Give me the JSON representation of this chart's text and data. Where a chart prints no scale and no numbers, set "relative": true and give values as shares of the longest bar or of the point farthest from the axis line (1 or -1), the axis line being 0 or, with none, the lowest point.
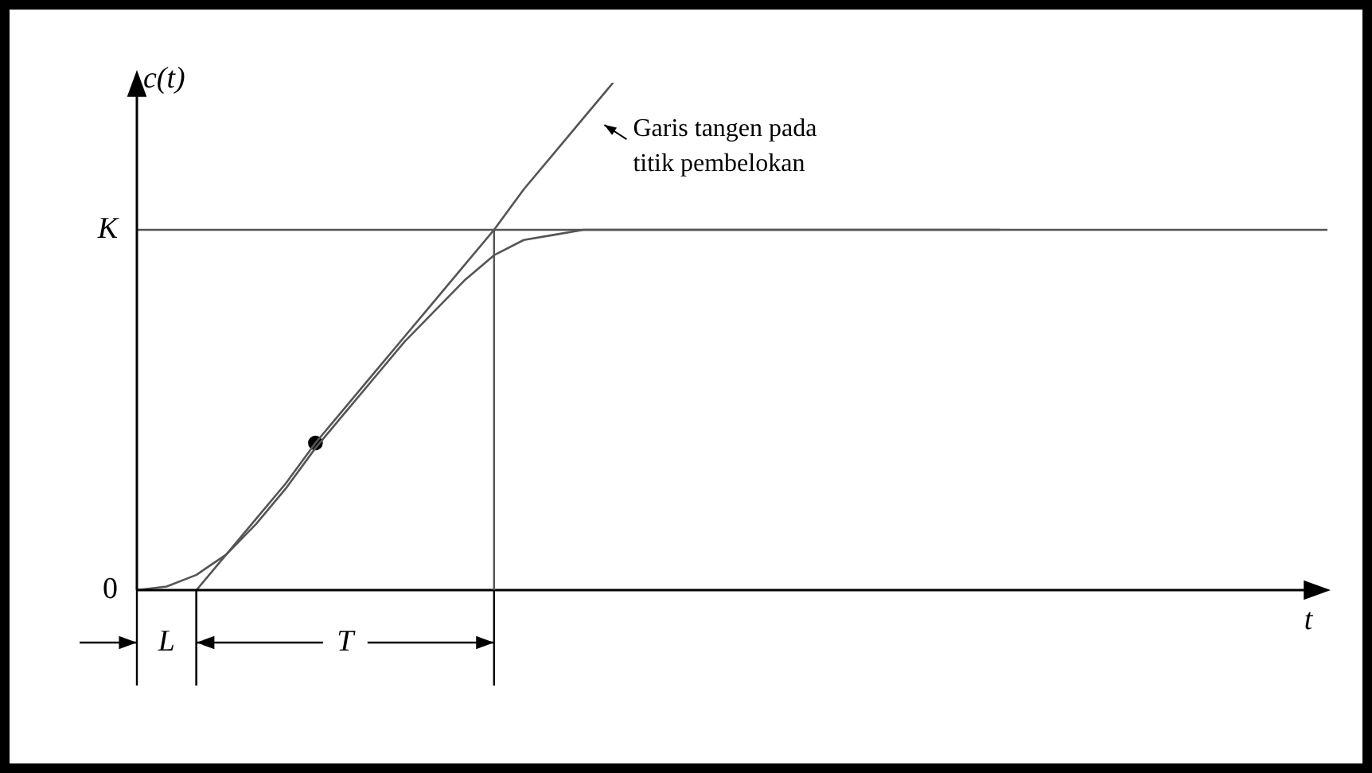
{
  "chart_data": {
    "type": "line",
    "xlabel": "t",
    "ylabel": "c(t)",
    "relative": true,
    "legend": false,
    "categories": [
      null,
      null,
      null,
      null,
      null,
      null,
      null,
      null,
      null,
      null,
      null,
      null,
      null,
      null,
      null,
      null,
      null,
      null,
      null,
      null,
      null,
      null,
      null,
      null,
      null,
      null,
      null,
      null,
      null,
      null,
      null,
      null,
      null,
      null,
      null,
      null,
      null,
      null,
      null,
      null,
      null
    ],
    "series": [
      {
        "color": "#555555",
        "marker": "none",
        "values": [
          0,
          0.007,
          0.03,
          0.07,
          0.13,
          0.2,
          0.28,
          0.35,
          0.42,
          0.49,
          0.55,
          0.61,
          0.66,
          0.69,
          0.7,
          0.71,
          0.71,
          0.71,
          0.71,
          0.71,
          0.71,
          0.71,
          0.71,
          0.71,
          0.71,
          0.71,
          0.71,
          0.71,
          0.71,
          0.71,
          null,
          null,
          null,
          null,
          null,
          null,
          null,
          null,
          null,
          null,
          null
        ]
      },
      {
        "color": "#555555",
        "marker": "none",
        "values": [
          null,
          null,
          0,
          0.07,
          0.14,
          0.21,
          0.29,
          0.36,
          0.43,
          0.5,
          0.57,
          0.64,
          0.71,
          0.79,
          0.86,
          0.93,
          1,
          null,
          null,
          null,
          null,
          null,
          null,
          null,
          null,
          null,
          null,
          null,
          null,
          null,
          null,
          null,
          null,
          null,
          null,
          null,
          null,
          null,
          null,
          null,
          null
        ]
      },
      {
        "color": "#000000",
        "marker": "circle",
        "values": [
          null,
          null,
          null,
          null,
          null,
          null,
          0.29,
          null,
          null,
          null,
          null,
          null,
          null,
          null,
          null,
          null,
          null,
          null,
          null,
          null,
          null,
          null,
          null,
          null,
          null,
          null,
          null,
          null,
          null,
          null,
          null,
          null,
          null,
          null,
          null,
          null,
          null,
          null,
          null,
          null,
          null
        ]
      },
      {
        "name": "K",
        "color": "#555555",
        "marker": "none",
        "values": [
          0.71,
          0.71,
          0.71,
          0.71,
          0.71,
          0.71,
          0.71,
          0.71,
          0.71,
          0.71,
          0.71,
          0.71,
          0.71,
          0.71,
          0.71,
          0.71,
          0.71,
          0.71,
          0.71,
          0.71,
          0.71,
          0.71,
          0.71,
          0.71,
          0.71,
          0.71,
          0.71,
          0.71,
          0.71,
          0.71,
          0.71,
          0.71,
          0.71,
          0.71,
          0.71,
          0.71,
          0.71,
          0.71,
          0.71,
          0.71,
          0.71
        ]
      }
    ],
    "annotations": [
      "0",
      "Garis tangen pada titik pembelokan",
      "L",
      "T"
    ]
  }
}
